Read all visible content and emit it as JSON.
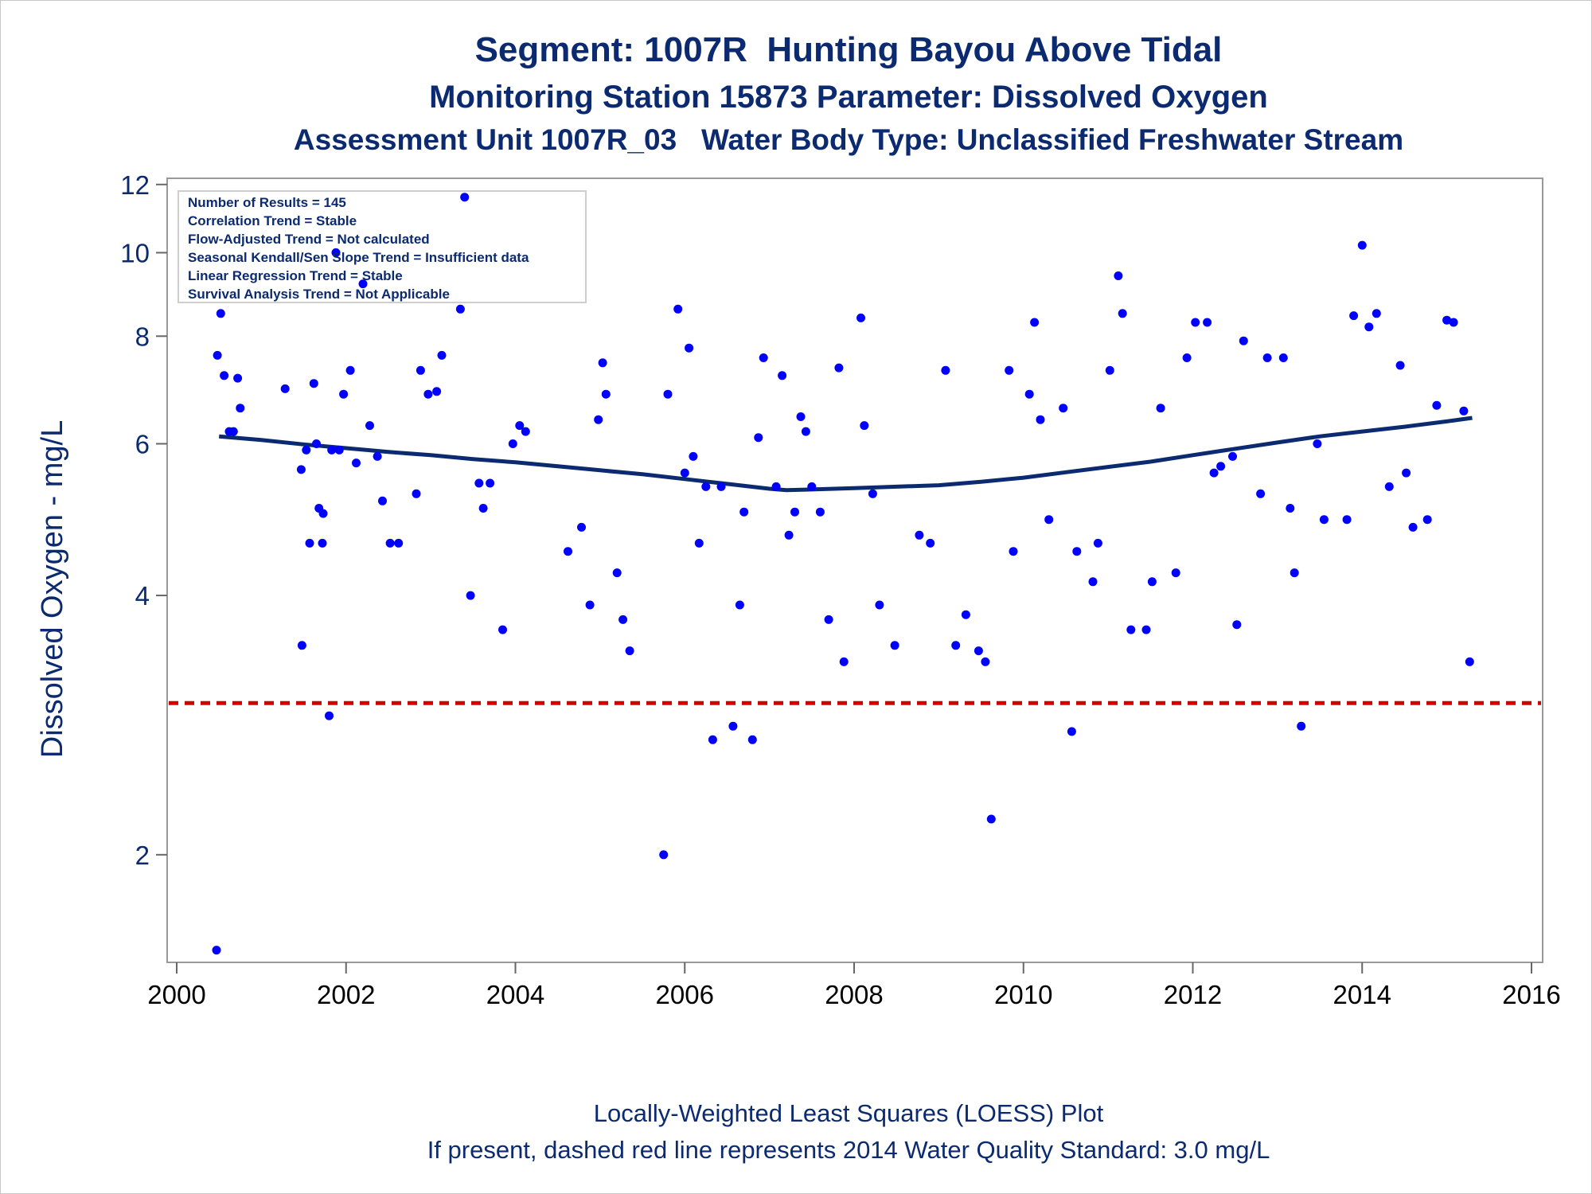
{
  "titles": {
    "line1": "Segment: 1007R  Hunting Bayou Above Tidal",
    "line2": "Monitoring Station 15873 Parameter: Dissolved Oxygen",
    "line3": "Assessment Unit 1007R_03   Water Body Type: Unclassified Freshwater Stream"
  },
  "footnotes": {
    "line1": "Locally-Weighted Least Squares (LOESS) Plot",
    "line2": "If present, dashed red line represents 2014 Water Quality Standard: 3.0 mg/L"
  },
  "info_box": [
    "Number of Results = 145",
    "Correlation Trend = Stable",
    "Flow-Adjusted Trend = Not calculated",
    "Seasonal Kendall/Sen Slope Trend = Insufficient data",
    "Linear Regression Trend = Stable",
    "Survival Analysis Trend = Not Applicable"
  ],
  "colors": {
    "points": "#0000ff",
    "loess": "#0b2a6f",
    "standard_line": "#d40000",
    "text": "#0b2a6f"
  },
  "chart_data": {
    "type": "scatter",
    "ylabel": "Dissolved Oxygen - mg/L",
    "xlabel": "",
    "y_scale": "log",
    "xlim": [
      2000,
      2016
    ],
    "ylim": [
      1.5,
      12.2
    ],
    "x_ticks": [
      2000,
      2002,
      2004,
      2006,
      2008,
      2010,
      2012,
      2014,
      2016
    ],
    "y_ticks": [
      2,
      4,
      6,
      8,
      10,
      12
    ],
    "legend": "none",
    "standard_line": {
      "value": 3.0,
      "style": "dashed"
    },
    "loess": {
      "x": [
        2000.5,
        2001.0,
        2001.5,
        2002.0,
        2002.5,
        2003.0,
        2003.5,
        2004.0,
        2004.5,
        2005.0,
        2005.5,
        2006.0,
        2006.5,
        2007.0,
        2007.2,
        2007.5,
        2008.0,
        2008.5,
        2009.0,
        2009.5,
        2010.0,
        2010.5,
        2011.0,
        2011.5,
        2012.0,
        2012.5,
        2013.0,
        2013.5,
        2014.0,
        2014.5,
        2015.0,
        2015.3
      ],
      "y": [
        6.12,
        6.06,
        5.99,
        5.93,
        5.87,
        5.82,
        5.76,
        5.71,
        5.65,
        5.59,
        5.53,
        5.46,
        5.39,
        5.32,
        5.3,
        5.31,
        5.33,
        5.35,
        5.37,
        5.42,
        5.48,
        5.56,
        5.64,
        5.72,
        5.82,
        5.92,
        6.02,
        6.12,
        6.2,
        6.28,
        6.37,
        6.43
      ]
    },
    "points": [
      [
        2000.47,
        1.55
      ],
      [
        2000.48,
        7.6
      ],
      [
        2000.52,
        8.5
      ],
      [
        2000.56,
        7.2
      ],
      [
        2000.62,
        6.2
      ],
      [
        2000.67,
        6.2
      ],
      [
        2000.72,
        7.15
      ],
      [
        2000.75,
        6.6
      ],
      [
        2001.28,
        6.95
      ],
      [
        2001.47,
        5.6
      ],
      [
        2001.48,
        3.5
      ],
      [
        2001.53,
        5.9
      ],
      [
        2001.57,
        4.6
      ],
      [
        2001.62,
        7.05
      ],
      [
        2001.65,
        6.0
      ],
      [
        2001.68,
        5.05
      ],
      [
        2001.72,
        4.6
      ],
      [
        2001.73,
        4.98
      ],
      [
        2001.8,
        2.9
      ],
      [
        2001.83,
        5.9
      ],
      [
        2001.88,
        10.0
      ],
      [
        2001.92,
        5.9
      ],
      [
        2001.97,
        6.85
      ],
      [
        2002.05,
        7.3
      ],
      [
        2002.12,
        5.7
      ],
      [
        2002.2,
        9.2
      ],
      [
        2002.28,
        6.3
      ],
      [
        2002.37,
        5.8
      ],
      [
        2002.43,
        5.15
      ],
      [
        2002.52,
        4.6
      ],
      [
        2002.62,
        4.6
      ],
      [
        2002.83,
        5.25
      ],
      [
        2002.88,
        7.3
      ],
      [
        2002.97,
        6.85
      ],
      [
        2003.07,
        6.9
      ],
      [
        2003.13,
        7.6
      ],
      [
        2003.35,
        8.6
      ],
      [
        2003.4,
        11.6
      ],
      [
        2003.47,
        4.0
      ],
      [
        2003.57,
        5.4
      ],
      [
        2003.62,
        5.05
      ],
      [
        2003.7,
        5.4
      ],
      [
        2003.85,
        3.65
      ],
      [
        2003.97,
        6.0
      ],
      [
        2004.05,
        6.3
      ],
      [
        2004.12,
        6.2
      ],
      [
        2004.62,
        4.5
      ],
      [
        2004.78,
        4.8
      ],
      [
        2004.88,
        3.9
      ],
      [
        2004.98,
        6.4
      ],
      [
        2005.03,
        7.45
      ],
      [
        2005.07,
        6.85
      ],
      [
        2005.2,
        4.25
      ],
      [
        2005.27,
        3.75
      ],
      [
        2005.35,
        3.45
      ],
      [
        2005.75,
        2.0
      ],
      [
        2005.8,
        6.85
      ],
      [
        2005.92,
        8.6
      ],
      [
        2006.0,
        5.55
      ],
      [
        2006.05,
        7.75
      ],
      [
        2006.1,
        5.8
      ],
      [
        2006.17,
        4.6
      ],
      [
        2006.25,
        5.35
      ],
      [
        2006.33,
        2.72
      ],
      [
        2006.43,
        5.35
      ],
      [
        2006.57,
        2.82
      ],
      [
        2006.65,
        3.9
      ],
      [
        2006.7,
        5.0
      ],
      [
        2006.8,
        2.72
      ],
      [
        2006.87,
        6.1
      ],
      [
        2006.93,
        7.55
      ],
      [
        2007.08,
        5.35
      ],
      [
        2007.15,
        7.2
      ],
      [
        2007.23,
        4.7
      ],
      [
        2007.3,
        5.0
      ],
      [
        2007.37,
        6.45
      ],
      [
        2007.43,
        6.2
      ],
      [
        2007.5,
        5.35
      ],
      [
        2007.6,
        5.0
      ],
      [
        2007.7,
        3.75
      ],
      [
        2007.82,
        7.35
      ],
      [
        2007.88,
        3.35
      ],
      [
        2008.08,
        8.4
      ],
      [
        2008.12,
        6.3
      ],
      [
        2008.22,
        5.25
      ],
      [
        2008.3,
        3.9
      ],
      [
        2008.48,
        3.5
      ],
      [
        2008.77,
        4.7
      ],
      [
        2008.9,
        4.6
      ],
      [
        2009.08,
        7.3
      ],
      [
        2009.2,
        3.5
      ],
      [
        2009.32,
        3.8
      ],
      [
        2009.47,
        3.45
      ],
      [
        2009.55,
        3.35
      ],
      [
        2009.62,
        2.2
      ],
      [
        2009.83,
        7.3
      ],
      [
        2009.88,
        4.5
      ],
      [
        2010.07,
        6.85
      ],
      [
        2010.13,
        8.3
      ],
      [
        2010.2,
        6.4
      ],
      [
        2010.3,
        4.9
      ],
      [
        2010.47,
        6.6
      ],
      [
        2010.57,
        2.78
      ],
      [
        2010.63,
        4.5
      ],
      [
        2010.82,
        4.15
      ],
      [
        2010.88,
        4.6
      ],
      [
        2011.02,
        7.3
      ],
      [
        2011.12,
        9.4
      ],
      [
        2011.17,
        8.5
      ],
      [
        2011.27,
        3.65
      ],
      [
        2011.45,
        3.65
      ],
      [
        2011.52,
        4.15
      ],
      [
        2011.62,
        6.6
      ],
      [
        2011.8,
        4.25
      ],
      [
        2011.93,
        7.55
      ],
      [
        2012.03,
        8.3
      ],
      [
        2012.17,
        8.3
      ],
      [
        2012.25,
        5.55
      ],
      [
        2012.33,
        5.65
      ],
      [
        2012.47,
        5.8
      ],
      [
        2012.52,
        3.7
      ],
      [
        2012.6,
        7.9
      ],
      [
        2012.8,
        5.25
      ],
      [
        2012.88,
        7.55
      ],
      [
        2013.07,
        7.55
      ],
      [
        2013.15,
        5.05
      ],
      [
        2013.2,
        4.25
      ],
      [
        2013.28,
        2.82
      ],
      [
        2013.47,
        6.0
      ],
      [
        2013.55,
        4.9
      ],
      [
        2013.82,
        4.9
      ],
      [
        2013.9,
        8.45
      ],
      [
        2014.0,
        10.2
      ],
      [
        2014.08,
        8.2
      ],
      [
        2014.17,
        8.5
      ],
      [
        2014.32,
        5.35
      ],
      [
        2014.45,
        7.4
      ],
      [
        2014.52,
        5.55
      ],
      [
        2014.6,
        4.8
      ],
      [
        2014.77,
        4.9
      ],
      [
        2014.88,
        6.65
      ],
      [
        2015.0,
        8.35
      ],
      [
        2015.08,
        8.3
      ],
      [
        2015.2,
        6.55
      ],
      [
        2015.27,
        3.35
      ]
    ]
  }
}
